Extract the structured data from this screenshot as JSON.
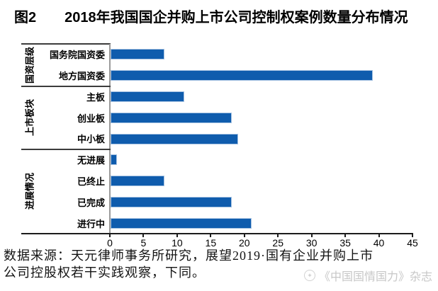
{
  "title": {
    "tag": "图2",
    "text": "2018年我国国企并购上市公司控制权案例数量分布情况"
  },
  "chart_data": {
    "type": "bar",
    "orientation": "horizontal",
    "bar_color": "#0f5cad",
    "xlim": [
      0,
      45
    ],
    "x_ticks": [
      0,
      5,
      10,
      15,
      20,
      25,
      30,
      35,
      40,
      45
    ],
    "grid": false,
    "legend": false,
    "groups": [
      {
        "label": "国资层级",
        "items": [
          {
            "label": "国务院国资委",
            "value": 8
          },
          {
            "label": "地方国资委",
            "value": 39
          }
        ]
      },
      {
        "label": "上市板块",
        "items": [
          {
            "label": "主板",
            "value": 11
          },
          {
            "label": "创业板",
            "value": 18
          },
          {
            "label": "中小板",
            "value": 19
          }
        ]
      },
      {
        "label": "进展情况",
        "items": [
          {
            "label": "无进展",
            "value": 1
          },
          {
            "label": "已终止",
            "value": 8
          },
          {
            "label": "已完成",
            "value": 18
          },
          {
            "label": "进行中",
            "value": 21
          }
        ]
      }
    ]
  },
  "source_note": {
    "line1": "数据来源：天元律师事务所研究，展望2019·国有企业并购上市",
    "line2": "公司控股权若干实践观察，下同。"
  },
  "watermark": {
    "text": "《中国国情国力》杂志"
  }
}
